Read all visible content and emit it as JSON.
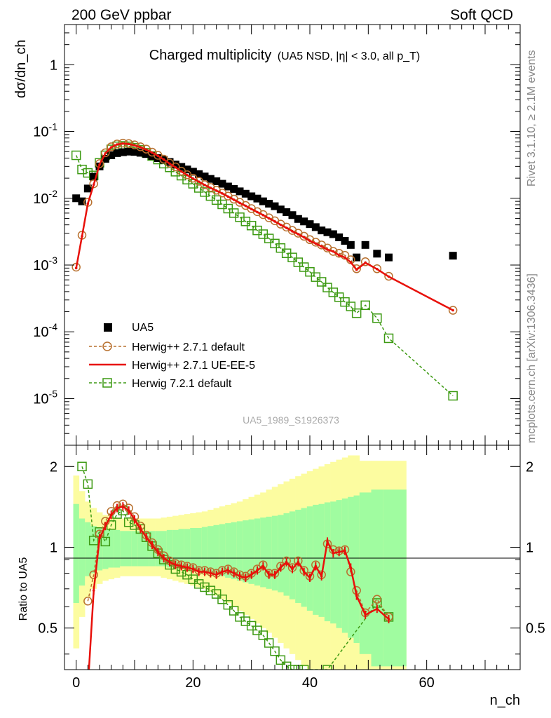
{
  "header": {
    "left": "200 GeV ppbar",
    "right": "Soft QCD"
  },
  "side": {
    "top": "Rivet 3.1.10, ≥ 2.1M events",
    "bottom": "mcplots.cern.ch [arXiv:1306.3436]"
  },
  "watermark": "UA5_1989_S1926373",
  "chart_data": [
    {
      "type": "scatter",
      "title": "Charged multiplicity",
      "subtitle": "(UA5 NSD, |η| < 3.0, all p_T)",
      "ylabel": "dσ/dn_ch",
      "xlabel": "n_ch",
      "yscale": "log",
      "xlim": [
        -2,
        76
      ],
      "ylim": [
        2e-06,
        4
      ],
      "ytick_labels": [
        "10^-5",
        "10^-4",
        "10^-3",
        "10^-2",
        "10^-1",
        "1"
      ],
      "legend_placement": "lower-left",
      "series": [
        {
          "name": "UA5",
          "style": "black-squares",
          "color": "#000000",
          "x": [
            0,
            1,
            2,
            3,
            4,
            5,
            6,
            7,
            8,
            9,
            10,
            11,
            12,
            13,
            14,
            15,
            16,
            17,
            18,
            19,
            20,
            21,
            22,
            23,
            24,
            25,
            26,
            27,
            28,
            29,
            30,
            31,
            32,
            33,
            34,
            35,
            36,
            37,
            38,
            39,
            40,
            41,
            42,
            43,
            44,
            45,
            46,
            47,
            48,
            49.5,
            51.5,
            53.5,
            64.5
          ],
          "y": [
            0.01,
            0.009,
            0.014,
            0.021,
            0.03,
            0.039,
            0.044,
            0.0475,
            0.049,
            0.05,
            0.0495,
            0.048,
            0.046,
            0.043,
            0.04,
            0.0375,
            0.035,
            0.032,
            0.0295,
            0.027,
            0.025,
            0.023,
            0.0212,
            0.0195,
            0.018,
            0.0165,
            0.015,
            0.0138,
            0.0127,
            0.0117,
            0.0107,
            0.0099,
            0.009,
            0.0083,
            0.0076,
            0.0068,
            0.0062,
            0.0056,
            0.0049,
            0.0045,
            0.0041,
            0.0037,
            0.0033,
            0.0031,
            0.0029,
            0.0026,
            0.0023,
            0.002,
            0.0013,
            0.002,
            0.00148,
            0.0013,
            0.00138
          ]
        },
        {
          "name": "Herwig++ 2.7.1 default",
          "style": "brown-circles-dashed",
          "color": "#b8702e",
          "x": [
            0,
            1,
            2,
            3,
            4,
            5,
            6,
            7,
            8,
            9,
            10,
            11,
            12,
            13,
            14,
            15,
            16,
            17,
            18,
            19,
            20,
            21,
            22,
            23,
            24,
            25,
            26,
            27,
            28,
            29,
            30,
            31,
            32,
            33,
            34,
            35,
            36,
            37,
            38,
            39,
            40,
            41,
            42,
            43,
            44,
            45,
            46,
            47,
            48,
            49.5,
            51.5,
            53.5,
            64.5
          ],
          "y": [
            0.00093,
            0.0028,
            0.0087,
            0.0165,
            0.033,
            0.048,
            0.059,
            0.065,
            0.067,
            0.066,
            0.063,
            0.059,
            0.0545,
            0.049,
            0.044,
            0.0385,
            0.0335,
            0.0295,
            0.0255,
            0.0225,
            0.02,
            0.018,
            0.016,
            0.0145,
            0.0132,
            0.012,
            0.0108,
            0.0097,
            0.0087,
            0.0078,
            0.007,
            0.0063,
            0.0057,
            0.0051,
            0.0046,
            0.0041,
            0.0037,
            0.0033,
            0.003,
            0.0027,
            0.0024,
            0.0022,
            0.002,
            0.0018,
            0.0016,
            0.0015,
            0.0014,
            0.0012,
            0.00088,
            0.00112,
            0.00088,
            0.00068,
            0.00021
          ]
        },
        {
          "name": "Herwig++ 2.7.1 UE-EE-5",
          "style": "red-solid-line",
          "color": "#e8100a",
          "x": [
            0,
            1,
            2,
            3,
            4,
            5,
            6,
            7,
            8,
            9,
            10,
            11,
            12,
            13,
            14,
            15,
            16,
            17,
            18,
            19,
            20,
            21,
            22,
            23,
            24,
            25,
            26,
            27,
            28,
            29,
            30,
            31,
            32,
            33,
            34,
            35,
            36,
            37,
            38,
            39,
            40,
            41,
            42,
            43,
            44,
            45,
            46,
            47,
            48,
            49.5,
            51.5,
            53.5,
            64.5
          ],
          "y": [
            0.0009,
            0.0027,
            0.0083,
            0.016,
            0.032,
            0.047,
            0.058,
            0.064,
            0.066,
            0.065,
            0.062,
            0.058,
            0.0535,
            0.0482,
            0.0432,
            0.038,
            0.033,
            0.029,
            0.0252,
            0.0222,
            0.0197,
            0.0177,
            0.0158,
            0.0143,
            0.013,
            0.0118,
            0.0106,
            0.0095,
            0.0085,
            0.0077,
            0.0069,
            0.0062,
            0.0056,
            0.005,
            0.0045,
            0.004,
            0.0036,
            0.0032,
            0.0029,
            0.0026,
            0.0023,
            0.0021,
            0.0019,
            0.0017,
            0.0016,
            0.0014,
            0.0013,
            0.0011,
            0.00085,
            0.00108,
            0.00087,
            0.00067,
            0.00021
          ]
        },
        {
          "name": "Herwig 7.2.1 default",
          "style": "green-squares-dashed",
          "color": "#3d9a13",
          "x": [
            0,
            1,
            2,
            3,
            4,
            5,
            6,
            7,
            8,
            9,
            10,
            11,
            12,
            13,
            14,
            15,
            16,
            17,
            18,
            19,
            20,
            21,
            22,
            23,
            24,
            25,
            26,
            27,
            28,
            29,
            30,
            31,
            32,
            33,
            34,
            35,
            36,
            37,
            38,
            39,
            40,
            41,
            42,
            43,
            44,
            45,
            46,
            47,
            48,
            49.5,
            51.5,
            53.5,
            64.5
          ],
          "y": [
            0.044,
            0.027,
            0.024,
            0.022,
            0.034,
            0.044,
            0.054,
            0.06,
            0.061,
            0.06,
            0.057,
            0.053,
            0.048,
            0.043,
            0.038,
            0.033,
            0.029,
            0.025,
            0.0218,
            0.019,
            0.0165,
            0.0143,
            0.0124,
            0.0108,
            0.0094,
            0.0081,
            0.007,
            0.006,
            0.0052,
            0.0045,
            0.0039,
            0.0033,
            0.0029,
            0.0025,
            0.0021,
            0.0018,
            0.0015,
            0.0013,
            0.0011,
            0.00093,
            0.00079,
            0.00066,
            0.00056,
            0.00046,
            0.00039,
            0.00033,
            0.00028,
            0.00024,
            0.00019,
            0.00025,
            0.00016,
            8e-05,
            1.1e-05
          ]
        }
      ]
    },
    {
      "type": "line",
      "ylabel": "Ratio to UA5",
      "xlabel": "n_ch",
      "yscale": "log",
      "xlim": [
        -2,
        76
      ],
      "ylim": [
        0.35,
        2.4
      ],
      "yticks": [
        0.5,
        1,
        2
      ],
      "ytick_labels": [
        "0.5",
        "1",
        "2"
      ],
      "xticks": [
        0,
        20,
        40,
        60
      ],
      "xtick_labels": [
        "0",
        "20",
        "40",
        "60"
      ],
      "uncertainty_bands": {
        "inner_color": "#a0fca0",
        "outer_color": "#fcfca0",
        "x": [
          -0.5,
          0.5,
          1.5,
          2.5,
          3.5,
          4.5,
          5.5,
          6.5,
          7.5,
          8.5,
          9.5,
          10.5,
          11.5,
          12.5,
          13.5,
          14.5,
          15.5,
          16.5,
          17.5,
          18.5,
          19.5,
          20.5,
          21.5,
          22.5,
          23.5,
          24.5,
          25.5,
          26.5,
          27.5,
          28.5,
          29.5,
          30.5,
          31.5,
          32.5,
          33.5,
          34.5,
          35.5,
          36.5,
          37.5,
          38.5,
          39.5,
          40.5,
          41.5,
          42.5,
          43.5,
          44.5,
          45.5,
          46.5,
          47.5,
          48.5,
          50.5,
          52.5,
          56.5,
          74.5
        ],
        "inner_lo": [
          0.62,
          0.72,
          0.78,
          0.8,
          0.82,
          0.83,
          0.84,
          0.84,
          0.85,
          0.85,
          0.85,
          0.85,
          0.85,
          0.85,
          0.85,
          0.85,
          0.84,
          0.84,
          0.83,
          0.83,
          0.82,
          0.82,
          0.81,
          0.8,
          0.79,
          0.78,
          0.77,
          0.76,
          0.75,
          0.74,
          0.73,
          0.72,
          0.71,
          0.7,
          0.69,
          0.68,
          0.66,
          0.64,
          0.62,
          0.6,
          0.58,
          0.56,
          0.55,
          0.53,
          0.52,
          0.5,
          0.48,
          0.46,
          0.44,
          0.4,
          0.36,
          0.36
        ],
        "inner_hi": [
          1.45,
          1.28,
          1.24,
          1.2,
          1.18,
          1.17,
          1.16,
          1.16,
          1.15,
          1.15,
          1.15,
          1.15,
          1.15,
          1.15,
          1.15,
          1.15,
          1.16,
          1.16,
          1.17,
          1.17,
          1.18,
          1.18,
          1.19,
          1.2,
          1.21,
          1.22,
          1.23,
          1.24,
          1.25,
          1.26,
          1.27,
          1.28,
          1.29,
          1.3,
          1.31,
          1.32,
          1.34,
          1.36,
          1.38,
          1.4,
          1.42,
          1.44,
          1.45,
          1.47,
          1.48,
          1.5,
          1.52,
          1.54,
          1.56,
          1.6,
          1.64,
          1.64
        ],
        "outer_lo": [
          0.42,
          0.55,
          0.65,
          0.7,
          0.73,
          0.75,
          0.76,
          0.77,
          0.78,
          0.78,
          0.78,
          0.78,
          0.78,
          0.78,
          0.78,
          0.77,
          0.76,
          0.75,
          0.74,
          0.73,
          0.72,
          0.71,
          0.7,
          0.68,
          0.66,
          0.64,
          0.62,
          0.6,
          0.58,
          0.56,
          0.54,
          0.52,
          0.5,
          0.48,
          0.46,
          0.44,
          0.42,
          0.4,
          0.38,
          0.36,
          0.35,
          0.35,
          0.35,
          0.35,
          0.35,
          0.35,
          0.35,
          0.35,
          0.35,
          0.35,
          0.35,
          0.35
        ],
        "outer_hi": [
          1.85,
          1.62,
          1.48,
          1.4,
          1.35,
          1.32,
          1.3,
          1.29,
          1.28,
          1.28,
          1.28,
          1.28,
          1.28,
          1.28,
          1.28,
          1.29,
          1.3,
          1.31,
          1.32,
          1.33,
          1.34,
          1.35,
          1.36,
          1.38,
          1.4,
          1.42,
          1.44,
          1.46,
          1.48,
          1.51,
          1.54,
          1.57,
          1.6,
          1.64,
          1.68,
          1.72,
          1.76,
          1.8,
          1.84,
          1.88,
          1.92,
          1.96,
          2.0,
          2.04,
          2.08,
          2.12,
          2.16,
          2.2,
          2.2,
          2.1,
          2.1,
          2.1
        ]
      },
      "gaps": [
        [
          49.5,
          50.5
        ],
        [
          51.5,
          52.5
        ],
        [
          54.5,
          56.5
        ]
      ],
      "series": [
        {
          "name": "Herwig++ 2.7.1 default",
          "color": "#b8702e",
          "x": [
            2,
            3,
            4,
            5,
            6,
            7,
            8,
            9,
            10,
            11,
            12,
            13,
            14,
            15,
            16,
            17,
            18,
            19,
            20,
            21,
            22,
            23,
            24,
            25,
            26,
            27,
            28,
            29,
            30,
            31,
            32,
            33,
            34,
            35,
            36,
            37,
            38,
            39,
            40,
            41,
            42,
            43,
            44,
            45,
            46,
            47,
            48,
            49.5,
            51.5,
            53.5
          ],
          "y": [
            0.63,
            0.79,
            1.12,
            1.25,
            1.36,
            1.43,
            1.45,
            1.4,
            1.3,
            1.2,
            1.11,
            1.04,
            0.98,
            0.93,
            0.89,
            0.87,
            0.86,
            0.85,
            0.84,
            0.82,
            0.82,
            0.81,
            0.8,
            0.82,
            0.83,
            0.81,
            0.79,
            0.78,
            0.8,
            0.83,
            0.86,
            0.8,
            0.8,
            0.85,
            0.89,
            0.84,
            0.89,
            0.82,
            0.78,
            0.86,
            0.79,
            1.03,
            0.98,
            0.97,
            0.98,
            0.81,
            0.69,
            0.57,
            0.64,
            0.55
          ]
        },
        {
          "name": "Herwig++ 2.7.1 UE-EE-5",
          "color": "#e8100a",
          "x": [
            2,
            3,
            4,
            5,
            6,
            7,
            8,
            9,
            10,
            11,
            12,
            13,
            14,
            15,
            16,
            17,
            18,
            19,
            20,
            21,
            22,
            23,
            24,
            25,
            26,
            27,
            28,
            29,
            30,
            31,
            32,
            33,
            34,
            35,
            36,
            37,
            38,
            39,
            40,
            41,
            42,
            43,
            44,
            45,
            46,
            47,
            48,
            49.5,
            51.5,
            53.5
          ],
          "y": [
            0.3,
            0.69,
            1.08,
            1.2,
            1.32,
            1.4,
            1.42,
            1.37,
            1.27,
            1.17,
            1.09,
            1.02,
            0.96,
            0.91,
            0.88,
            0.86,
            0.85,
            0.84,
            0.83,
            0.81,
            0.81,
            0.8,
            0.79,
            0.81,
            0.82,
            0.8,
            0.78,
            0.77,
            0.79,
            0.82,
            0.85,
            0.79,
            0.79,
            0.84,
            0.88,
            0.83,
            0.88,
            0.81,
            0.77,
            0.85,
            0.78,
            1.05,
            0.95,
            0.96,
            0.97,
            0.84,
            0.66,
            0.56,
            0.59,
            0.54
          ]
        },
        {
          "name": "Herwig 7.2.1 default",
          "color": "#3d9a13",
          "x": [
            1,
            2,
            3,
            4,
            5,
            6,
            7,
            8,
            9,
            10,
            11,
            12,
            13,
            14,
            15,
            16,
            17,
            18,
            19,
            20,
            21,
            22,
            23,
            24,
            25,
            26,
            27,
            28,
            29,
            30,
            31,
            32,
            33,
            34,
            35,
            36,
            37,
            38,
            39,
            43,
            51.5,
            53.5
          ],
          "y": [
            2.0,
            1.72,
            1.06,
            1.14,
            1.05,
            1.21,
            1.33,
            1.37,
            1.24,
            1.21,
            1.17,
            1.09,
            1.01,
            0.95,
            0.9,
            0.86,
            0.83,
            0.81,
            0.79,
            0.76,
            0.73,
            0.71,
            0.69,
            0.67,
            0.64,
            0.61,
            0.58,
            0.55,
            0.53,
            0.51,
            0.49,
            0.47,
            0.44,
            0.41,
            0.38,
            0.36,
            0.35,
            0.35,
            0.35,
            0.35,
            0.62,
            0.55
          ]
        }
      ]
    }
  ]
}
